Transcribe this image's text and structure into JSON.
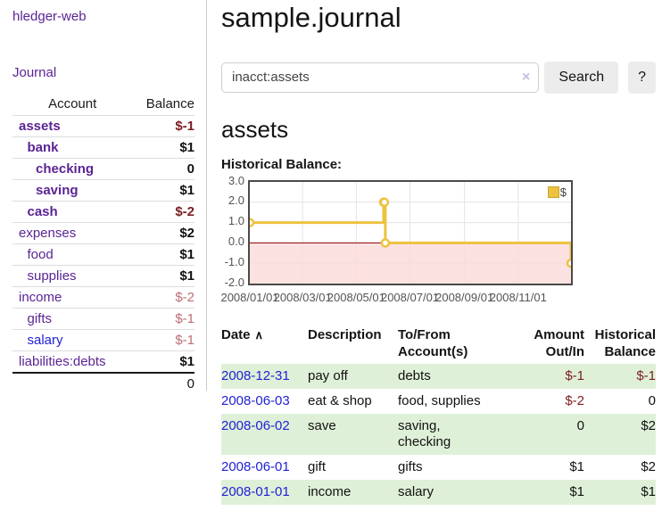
{
  "colors": {
    "link_purple": "#5a2495",
    "link_blue": "#2121d6",
    "negative_strong": "#7d1d21",
    "negative_soft": "#bd6d72",
    "row_stripe_green": "#dff0d8",
    "chart_line_gold": "#edc240",
    "chart_negative_region": "#fbdcdc",
    "chart_zero_line": "#8b0000"
  },
  "sidebar": {
    "brand": "hledger-web",
    "nav_journal": "Journal",
    "accounts_table": {
      "header_account": "Account",
      "header_balance": "Balance",
      "rows": [
        {
          "name": "assets",
          "depth": 1,
          "bold": true,
          "balance": "$-1",
          "balance_class": "neg-strong"
        },
        {
          "name": "bank",
          "depth": 2,
          "bold": true,
          "balance": "$1",
          "balance_class": ""
        },
        {
          "name": "checking",
          "depth": 3,
          "bold": true,
          "balance": "0",
          "balance_class": ""
        },
        {
          "name": "saving",
          "depth": 3,
          "bold": true,
          "balance": "$1",
          "balance_class": ""
        },
        {
          "name": "cash",
          "depth": 2,
          "bold": true,
          "balance": "$-2",
          "balance_class": "neg-strong"
        },
        {
          "name": "expenses",
          "depth": 1,
          "bold": false,
          "balance": "$2",
          "balance_class": ""
        },
        {
          "name": "food",
          "depth": 2,
          "bold": false,
          "balance": "$1",
          "balance_class": ""
        },
        {
          "name": "supplies",
          "depth": 2,
          "bold": false,
          "balance": "$1",
          "balance_class": ""
        },
        {
          "name": "income",
          "depth": 1,
          "bold": false,
          "balance": "$-2",
          "balance_class": "neg-soft"
        },
        {
          "name": "gifts",
          "depth": 2,
          "bold": false,
          "balance": "$-1",
          "balance_class": "neg-soft"
        },
        {
          "name": "salary",
          "depth": 2,
          "bold": false,
          "balance": "$-1",
          "balance_class": "neg-soft",
          "link": "blue"
        },
        {
          "name": "liabilities:debts",
          "depth": 1,
          "bold": false,
          "balance": "$1",
          "balance_class": ""
        }
      ],
      "total": "0"
    }
  },
  "main": {
    "title": "sample.journal",
    "search": {
      "value": "inacct:assets",
      "clear_icon": "×",
      "button": "Search",
      "help_button": "?"
    },
    "heading": "assets"
  },
  "chart_data": {
    "type": "line",
    "title": "Historical Balance:",
    "style": "step-after",
    "series": [
      {
        "name": "$",
        "color": "#edc240",
        "points": [
          [
            "2008-01-01",
            1
          ],
          [
            "2008-06-01",
            2
          ],
          [
            "2008-06-02",
            2
          ],
          [
            "2008-06-03",
            0
          ],
          [
            "2008-12-31",
            -1
          ]
        ]
      }
    ],
    "x_range": [
      "2008-01-01",
      "2008-12-31"
    ],
    "x_ticks": [
      "2008/01/01",
      "2008/03/01",
      "2008/05/01",
      "2008/07/01",
      "2008/09/01",
      "2008/11/01"
    ],
    "y_ticks": [
      "3.0",
      "2.0",
      "1.0",
      "0.0",
      "-1.0",
      "-2.0"
    ],
    "ylim": [
      -2,
      3
    ],
    "grid": true,
    "legend": {
      "label": "$",
      "position": "top-right"
    },
    "negative_region_color": "#fbdcdc",
    "zero_line_color": "#8b0000"
  },
  "transactions": {
    "headers": {
      "date": "Date",
      "sort_icon": "∧",
      "description": "Description",
      "accounts": "To/From Account(s)",
      "amount": "Amount Out/In",
      "balance": "Historical Balance"
    },
    "rows": [
      {
        "date": "2008-12-31",
        "description": "pay off",
        "accounts": "debts",
        "amount": "$-1",
        "amount_neg": true,
        "balance": "$-1",
        "balance_neg": true,
        "shaded": true
      },
      {
        "date": "2008-06-03",
        "description": "eat & shop",
        "accounts": "food, supplies",
        "amount": "$-2",
        "amount_neg": true,
        "balance": "0",
        "balance_neg": false,
        "shaded": false
      },
      {
        "date": "2008-06-02",
        "description": "save",
        "accounts": "saving,\nchecking",
        "amount": "0",
        "amount_neg": false,
        "balance": "$2",
        "balance_neg": false,
        "shaded": true
      },
      {
        "date": "2008-06-01",
        "description": "gift",
        "accounts": "gifts",
        "amount": "$1",
        "amount_neg": false,
        "balance": "$2",
        "balance_neg": false,
        "shaded": false
      },
      {
        "date": "2008-01-01",
        "description": "income",
        "accounts": "salary",
        "amount": "$1",
        "amount_neg": false,
        "balance": "$1",
        "balance_neg": false,
        "shaded": true
      }
    ]
  }
}
